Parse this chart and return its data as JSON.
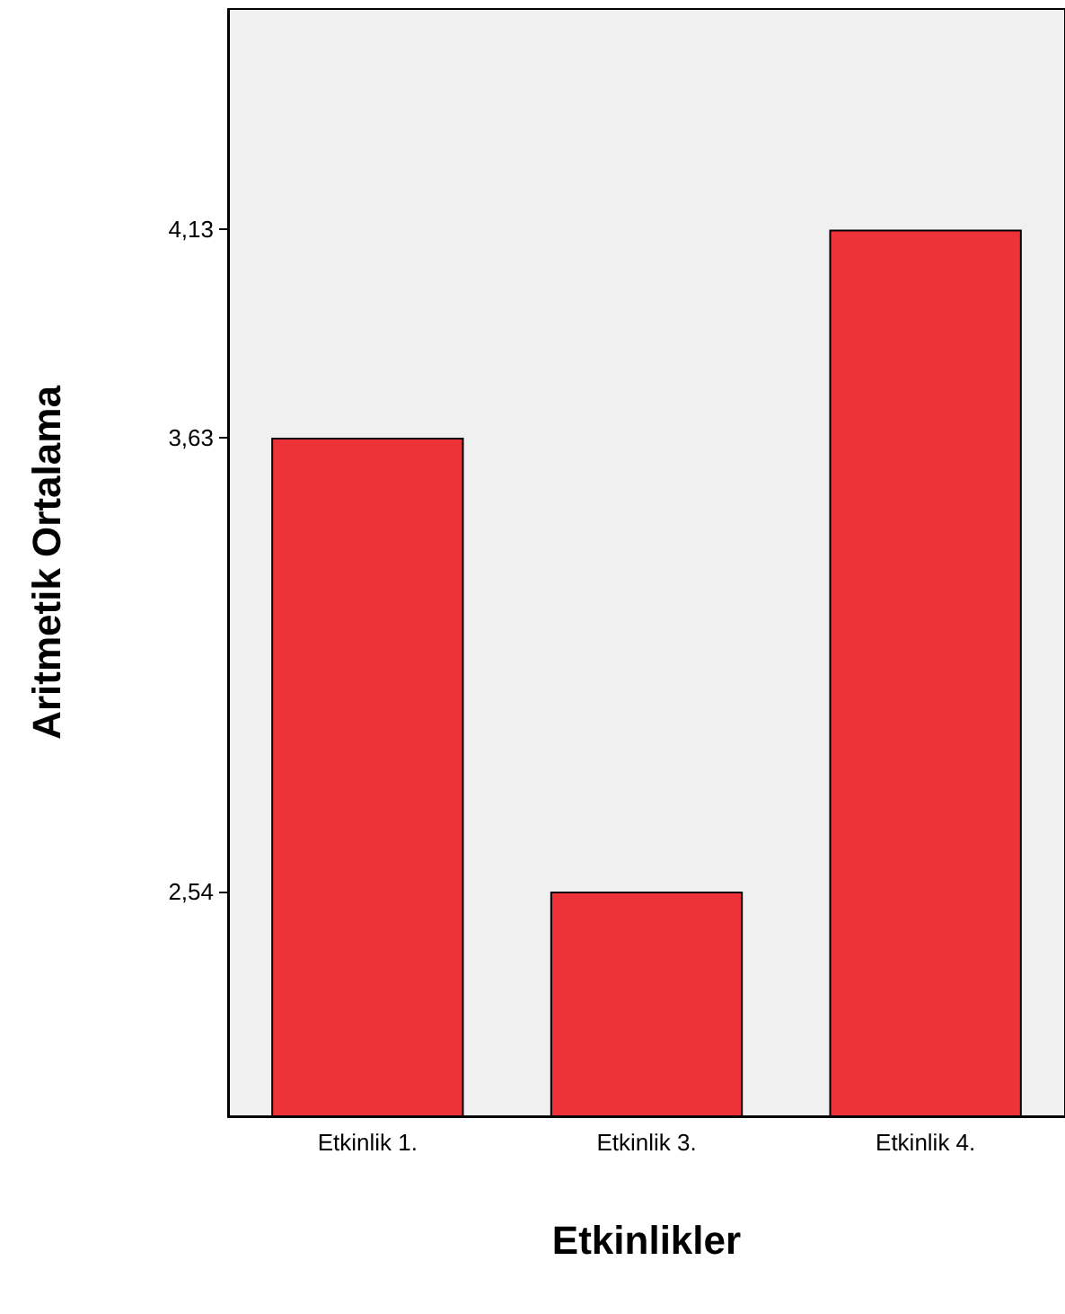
{
  "chart_data": {
    "type": "bar",
    "xlabel": "Etkinlikler",
    "ylabel": "Aritmetik Ortalama",
    "categories": [
      "Etkinlik 1.",
      "Etkinlik 3.",
      "Etkinlik 4."
    ],
    "values": [
      3.63,
      2.54,
      4.13
    ],
    "color": "#ee3338",
    "ylim": [
      2.0,
      4.66
    ],
    "yticks": [
      {
        "value": 2.54,
        "label": "2,54"
      },
      {
        "value": 3.63,
        "label": "3,63"
      },
      {
        "value": 4.13,
        "label": "4,13"
      }
    ]
  }
}
